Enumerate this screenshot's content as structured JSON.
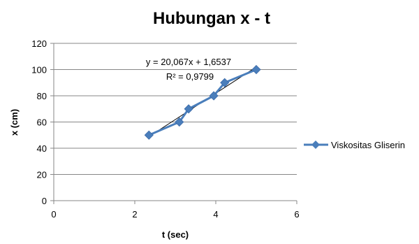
{
  "chart_data": {
    "type": "scatter",
    "title": "Hubungan x - t",
    "xlabel": "t (sec)",
    "ylabel": "x (cm)",
    "xlim": [
      0,
      6
    ],
    "ylim": [
      0,
      120
    ],
    "x_ticks": [
      "0",
      "2",
      "4",
      "6"
    ],
    "y_ticks": [
      "0",
      "20",
      "40",
      "60",
      "80",
      "100",
      "120"
    ],
    "grid": "horizontal",
    "legend_position": "right",
    "series": [
      {
        "name": "Viskositas Gliserin",
        "color": "#4a7ebb",
        "marker": "diamond",
        "connected": true,
        "points": [
          {
            "x": 2.35,
            "y": 50
          },
          {
            "x": 3.1,
            "y": 60
          },
          {
            "x": 3.33,
            "y": 70
          },
          {
            "x": 3.95,
            "y": 80
          },
          {
            "x": 4.22,
            "y": 90
          },
          {
            "x": 5.0,
            "y": 100
          }
        ]
      }
    ],
    "trendline": {
      "type": "linear",
      "slope": 20.067,
      "intercept": 1.6537,
      "x_range": [
        2.35,
        5.0
      ],
      "color": "#000000",
      "equation_label": "y = 20,067x + 1,6537",
      "r2_label": "R² = 0,9799"
    }
  }
}
